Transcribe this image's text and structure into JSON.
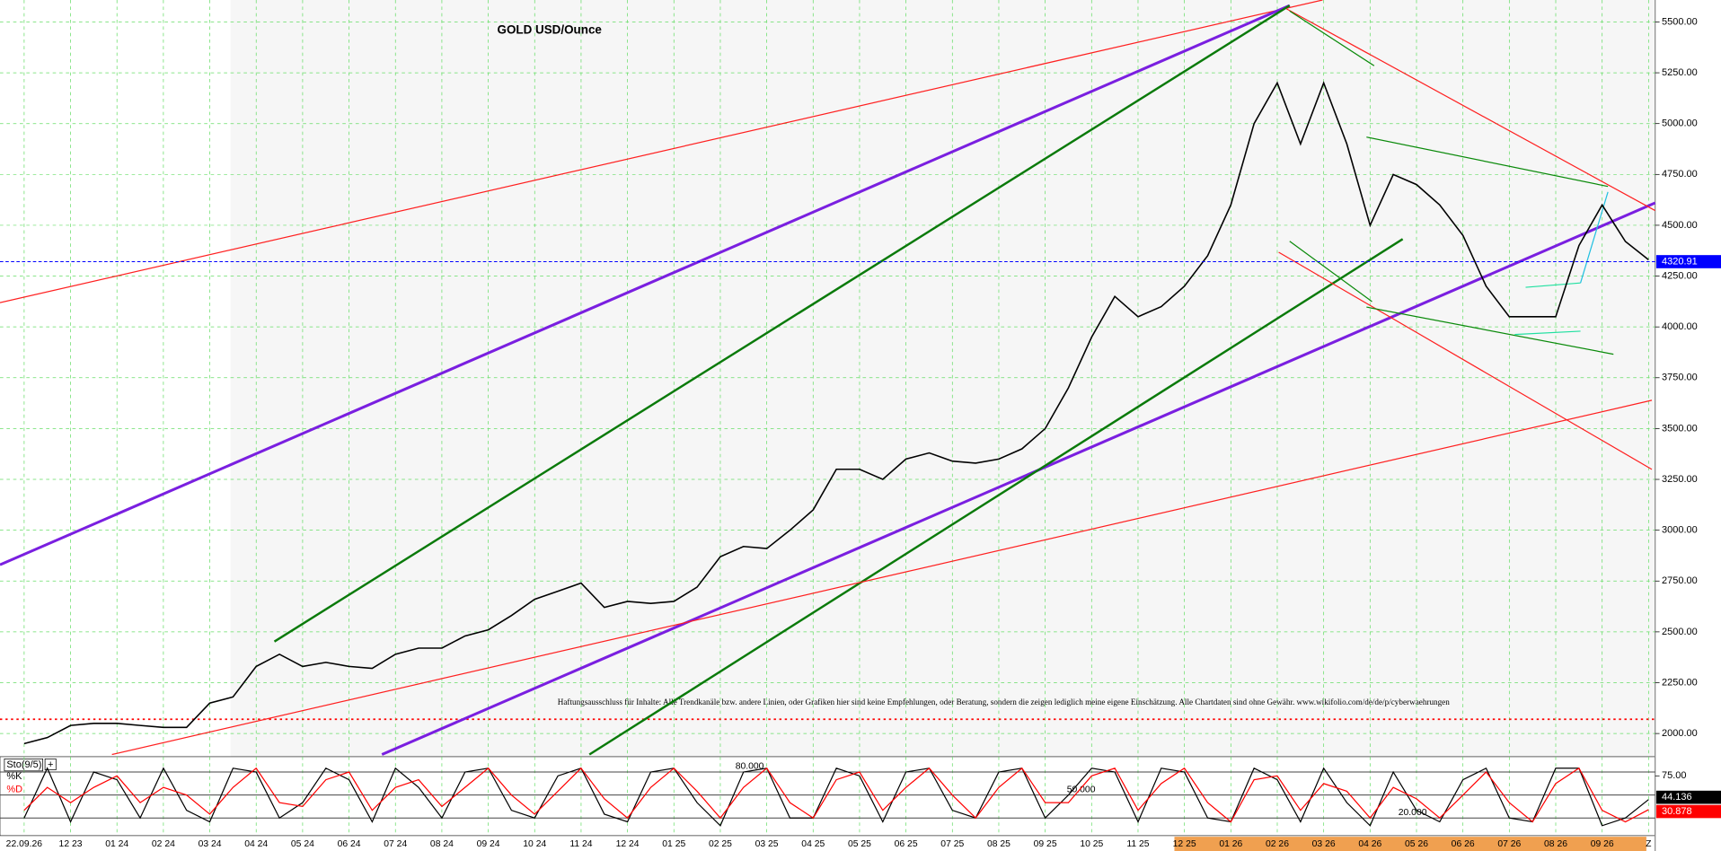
{
  "chart_data": [
    {
      "type": "line",
      "title": "GOLD USD/Ounce",
      "annotation": "Haftungsausschluss für Inhalte: Alle Trendkanäle bzw. andere Linien, oder Grafiken hier sind keine Empfehlungen, oder Beratung, sondern die zeigen lediglich meine eigene Einschätzung. Alle Chartdaten sind ohne Gewähr.  www.wikifolio.com/de/de/p/cyberwaehrungen",
      "categories": [
        "22.09.26",
        null,
        "12 23",
        null,
        "01 24",
        null,
        "02 24",
        null,
        "03 24",
        null,
        "04 24",
        null,
        "05 24",
        null,
        "06 24",
        null,
        "07 24",
        null,
        "08 24",
        null,
        "09 24",
        null,
        "10 24",
        null,
        "11 24",
        null,
        "12 24",
        null,
        "01 25",
        null,
        "02 25",
        null,
        "03 25",
        null,
        "04 25",
        null,
        "05 25",
        null,
        "06 25",
        null,
        "07 25",
        null,
        "08 25",
        null,
        "09 25",
        null,
        "10 25",
        null,
        "11 25",
        null,
        "12 25",
        null,
        "01 26",
        null,
        "02 26",
        null,
        "03 26",
        null,
        "04 26",
        null,
        "05 26",
        null,
        "06 26",
        null,
        "07 26",
        null,
        "08 26",
        null,
        "09 26",
        null,
        "Z"
      ],
      "series": [
        {
          "name": "GOLD",
          "color": "#000000",
          "values": [
            1950,
            1980,
            2040,
            2050,
            2050,
            2040,
            2030,
            2030,
            2150,
            2180,
            2330,
            2390,
            2330,
            2350,
            2330,
            2320,
            2390,
            2420,
            2420,
            2480,
            2510,
            2580,
            2660,
            2700,
            2740,
            2620,
            2650,
            2640,
            2650,
            2720,
            2870,
            2920,
            2910,
            3000,
            3100,
            3300,
            3300,
            3250,
            3350,
            3380,
            3340,
            3330,
            3350,
            3400,
            3500,
            3700,
            3950,
            4150,
            4050,
            4100,
            4200,
            4350,
            4600,
            5000,
            5200,
            4900,
            5200,
            4900,
            4500,
            4750,
            4700,
            4600,
            4450,
            4200,
            4050,
            4050,
            4050,
            4400,
            4600,
            4420,
            4330
          ]
        }
      ],
      "last_price": 4320.91,
      "hlines": [
        {
          "value": 2070,
          "color": "#ff0000"
        }
      ],
      "ylim": [
        1886,
        5608
      ],
      "yticks": [
        {
          "value": 2000,
          "label": "2000.00"
        },
        {
          "value": 2250,
          "label": "2250.00"
        },
        {
          "value": 2500,
          "label": "2500.00"
        },
        {
          "value": 2750,
          "label": "2750.00"
        },
        {
          "value": 3000,
          "label": "3000.00"
        },
        {
          "value": 3250,
          "label": "3250.00"
        },
        {
          "value": 3500,
          "label": "3500.00"
        },
        {
          "value": 3750,
          "label": "3750.00"
        },
        {
          "value": 4000,
          "label": "4000.00"
        },
        {
          "value": 4250,
          "label": "4250.00"
        },
        {
          "value": 4500,
          "label": "4500.00"
        },
        {
          "value": 4750,
          "label": "4750.00"
        },
        {
          "value": 5000,
          "label": "5000.00"
        },
        {
          "value": 5250,
          "label": "5250.00"
        },
        {
          "value": 5500,
          "label": "5500.00"
        }
      ],
      "grid": true
    },
    {
      "type": "line",
      "title": "Sto(9/5)",
      "series": [
        {
          "name": "%K",
          "color": "#000000",
          "values": [
            20,
            85,
            15,
            80,
            70,
            20,
            85,
            30,
            15,
            85,
            80,
            20,
            40,
            85,
            70,
            15,
            85,
            60,
            20,
            80,
            85,
            30,
            20,
            75,
            85,
            25,
            15,
            80,
            85,
            40,
            10,
            80,
            85,
            20,
            20,
            85,
            75,
            15,
            80,
            85,
            30,
            20,
            80,
            85,
            20,
            50,
            85,
            80,
            15,
            85,
            80,
            20,
            15,
            85,
            70,
            15,
            85,
            40,
            10,
            80,
            30,
            15,
            70,
            85,
            20,
            15,
            85,
            85,
            10,
            20,
            44.136
          ]
        },
        {
          "name": "%D",
          "color": "#ff0000",
          "values": [
            30,
            60,
            40,
            60,
            75,
            40,
            60,
            50,
            25,
            60,
            85,
            40,
            35,
            70,
            80,
            30,
            60,
            70,
            35,
            60,
            85,
            50,
            25,
            55,
            85,
            45,
            20,
            60,
            85,
            55,
            20,
            60,
            85,
            40,
            20,
            70,
            80,
            30,
            60,
            85,
            50,
            20,
            60,
            85,
            40,
            40,
            75,
            85,
            30,
            65,
            85,
            40,
            15,
            70,
            75,
            30,
            65,
            55,
            20,
            60,
            45,
            20,
            50,
            80,
            40,
            15,
            65,
            85,
            30,
            15,
            30.878
          ]
        }
      ],
      "levels": [
        {
          "value": 80,
          "label": "80.000"
        },
        {
          "value": 50,
          "label": "50.000"
        },
        {
          "value": 20,
          "label": "20.000"
        }
      ],
      "ylim": [
        -3,
        100
      ],
      "yticks": [
        {
          "value": 75,
          "label": "75.00"
        }
      ]
    }
  ]
}
